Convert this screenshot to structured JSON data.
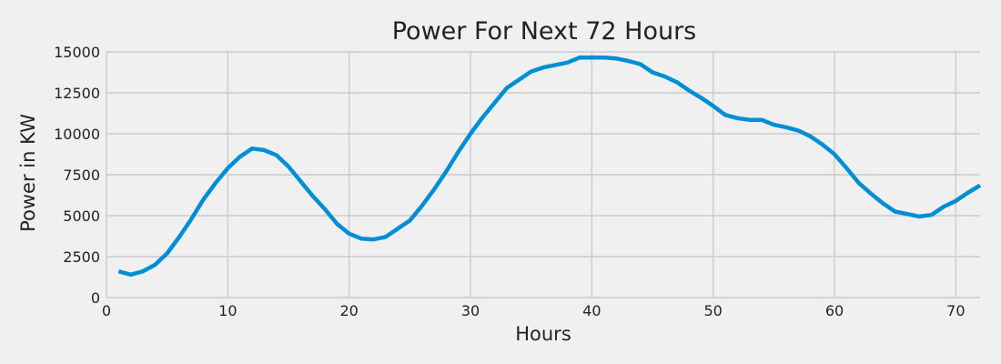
{
  "chart_data": {
    "type": "line",
    "title": "Power For Next 72 Hours",
    "xlabel": "Hours",
    "ylabel": "Power in KW",
    "xlim": [
      0,
      72
    ],
    "ylim": [
      0,
      15000
    ],
    "x_ticks": [
      0,
      10,
      20,
      30,
      40,
      50,
      60,
      70
    ],
    "y_ticks": [
      0,
      2500,
      5000,
      7500,
      10000,
      12500,
      15000
    ],
    "x_tick_labels": [
      "0",
      "10",
      "20",
      "30",
      "40",
      "50",
      "60",
      "70"
    ],
    "y_tick_labels": [
      "0",
      "2500",
      "5000",
      "7500",
      "10000",
      "12500",
      "15000"
    ],
    "grid": true,
    "legend": false,
    "colors": {
      "line": "#008fd5",
      "grid": "#cbcbcb",
      "background": "#f0f0f0"
    },
    "series": [
      {
        "x": [
          1,
          2,
          3,
          4,
          5,
          6,
          7,
          8,
          9,
          10,
          11,
          12,
          13,
          14,
          15,
          16,
          17,
          18,
          19,
          20,
          21,
          22,
          23,
          24,
          25,
          26,
          27,
          28,
          29,
          30,
          31,
          32,
          33,
          34,
          35,
          36,
          37,
          38,
          39,
          40,
          41,
          42,
          43,
          44,
          45,
          46,
          47,
          48,
          49,
          50,
          51,
          52,
          53,
          54,
          55,
          56,
          57,
          58,
          59,
          60,
          61,
          62,
          63,
          64,
          65,
          66,
          67,
          68,
          69,
          70,
          71,
          72
        ],
        "values": [
          1600,
          1400,
          1600,
          2000,
          2700,
          3700,
          4800,
          6000,
          7000,
          7900,
          8600,
          9100,
          9000,
          8700,
          8000,
          7100,
          6200,
          5400,
          4500,
          3900,
          3600,
          3550,
          3700,
          4200,
          4700,
          5600,
          6600,
          7700,
          8900,
          10000,
          11000,
          11900,
          12800,
          13300,
          13800,
          14050,
          14200,
          14350,
          14650,
          14650,
          14650,
          14600,
          14450,
          14250,
          13750,
          13500,
          13150,
          12650,
          12200,
          11700,
          11150,
          10950,
          10850,
          10850,
          10550,
          10400,
          10200,
          9850,
          9350,
          8750,
          7900,
          7000,
          6350,
          5750,
          5250,
          5100,
          4950,
          5050,
          5550,
          5900,
          6400,
          6850
        ]
      }
    ]
  }
}
